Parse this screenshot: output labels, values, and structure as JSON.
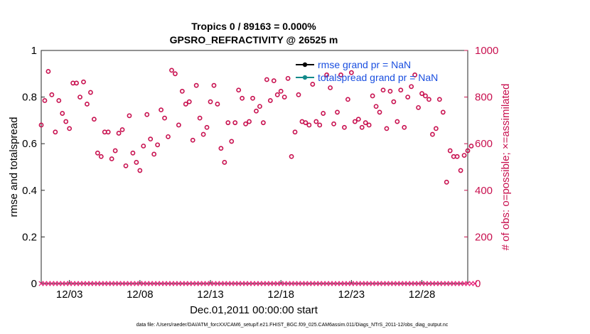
{
  "chart_data": {
    "type": "scatter",
    "title": "Tropics 0 / 89163 = 0.000%",
    "subtitle": "GPSRO_REFRACTIVITY @ 26525 m",
    "xlabel": "Dec.01,2011 00:00:00 start",
    "ylabel": "rmse and totalspread",
    "ylabel_right": "# of obs: o=possible; ×=assimilated",
    "ylim": [
      0,
      1
    ],
    "ylim_right": [
      0,
      1000
    ],
    "yticks": [
      "0",
      "0.2",
      "0.4",
      "0.6",
      "0.8",
      "1"
    ],
    "yticks_right": [
      "0",
      "200",
      "400",
      "600",
      "800",
      "1000"
    ],
    "xlim": [
      0,
      30.25
    ],
    "xticks": [
      {
        "day": 2,
        "label": "12/03"
      },
      {
        "day": 7,
        "label": "12/08"
      },
      {
        "day": 12,
        "label": "12/13"
      },
      {
        "day": 17,
        "label": "12/18"
      },
      {
        "day": 22,
        "label": "12/23"
      },
      {
        "day": 27,
        "label": "12/28"
      }
    ],
    "legend": [
      {
        "label": "rmse grand pr = NaN",
        "color": "#000000"
      },
      {
        "label": "totalspread grand pr = NaN",
        "color": "#138a8a"
      }
    ],
    "series": [
      {
        "name": "obs possible",
        "axis": "right",
        "marker": "circle",
        "color": "#c8104f",
        "values": [
          680,
          785,
          910,
          810,
          650,
          785,
          730,
          695,
          665,
          860,
          860,
          800,
          865,
          770,
          820,
          705,
          560,
          545,
          650,
          650,
          535,
          570,
          645,
          660,
          505,
          720,
          560,
          520,
          485,
          590,
          725,
          620,
          555,
          595,
          745,
          710,
          630,
          915,
          900,
          680,
          825,
          770,
          780,
          615,
          850,
          710,
          640,
          670,
          780,
          850,
          770,
          580,
          520,
          690,
          610,
          690,
          830,
          795,
          685,
          695,
          795,
          740,
          760,
          690,
          875,
          785,
          870,
          810,
          825,
          800,
          880,
          545,
          650,
          810,
          695,
          690,
          680,
          855,
          695,
          680,
          730,
          895,
          840,
          685,
          735,
          895,
          670,
          790,
          905,
          695,
          705,
          670,
          690,
          680,
          805,
          760,
          735,
          830,
          665,
          825,
          780,
          695,
          830,
          670,
          800,
          845,
          895,
          755,
          815,
          805,
          790,
          640,
          665,
          790,
          735,
          435,
          570,
          545,
          545,
          485,
          550,
          570,
          590
        ]
      },
      {
        "name": "obs assimilated",
        "axis": "right",
        "marker": "x",
        "color": "#e8237a",
        "values": "all 0 (one per time step across the full period)"
      }
    ],
    "footnote": "data file: /Users/raeder/DAI/ATM_forcXX/CAM6_setup/f.e21.FHIST_BGC.f09_025.CAM6assim.011/Diags_NTrS_2011-12/obs_diag_output.nc"
  }
}
